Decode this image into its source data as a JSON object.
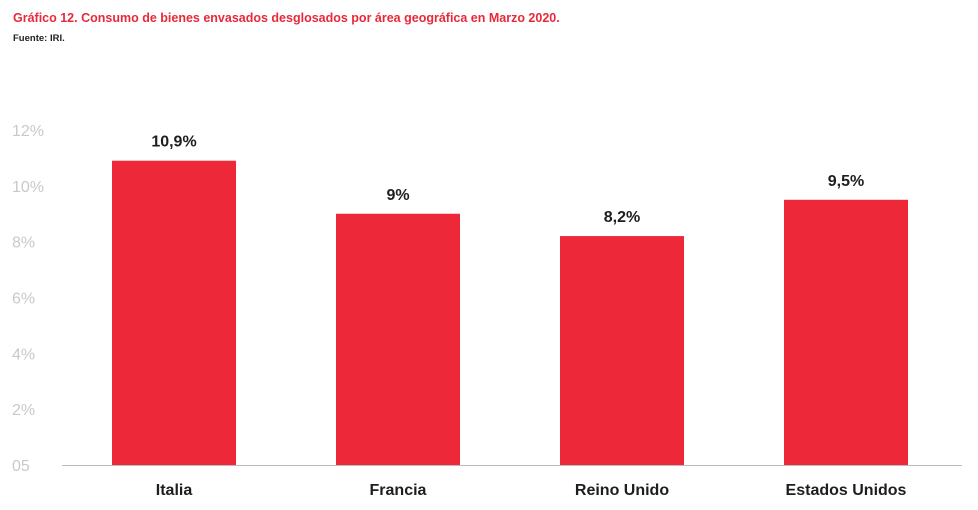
{
  "header": {
    "title": "Gráfico 12. Consumo de bienes envasados desglosados por área geográfica en Marzo 2020.",
    "source": "Fuente: IRI."
  },
  "colors": {
    "bar": "#ed2939",
    "title": "#e8293a",
    "axis": "#bbbbbb",
    "tick_text": "#c9c9c9",
    "label_text": "#1e1e1e"
  },
  "chart_data": {
    "type": "bar",
    "categories": [
      "Italia",
      "Francia",
      "Reino Unido",
      "Estados Unidos"
    ],
    "values": [
      10.9,
      9,
      8.2,
      9.5
    ],
    "data_labels": [
      "10,9%",
      "9%",
      "8,2%",
      "9,5%"
    ],
    "y_ticks": [
      {
        "value": 0,
        "label": "05"
      },
      {
        "value": 2,
        "label": "2%"
      },
      {
        "value": 4,
        "label": "4%"
      },
      {
        "value": 6,
        "label": "6%"
      },
      {
        "value": 8,
        "label": "8%"
      },
      {
        "value": 10,
        "label": "10%"
      },
      {
        "value": 12,
        "label": "12%"
      }
    ],
    "ylim": [
      0,
      12
    ],
    "grid": false,
    "legend": "none",
    "title": "Gráfico 12. Consumo de bienes envasados desglosados por área geográfica en Marzo 2020.",
    "xlabel": "",
    "ylabel": ""
  }
}
